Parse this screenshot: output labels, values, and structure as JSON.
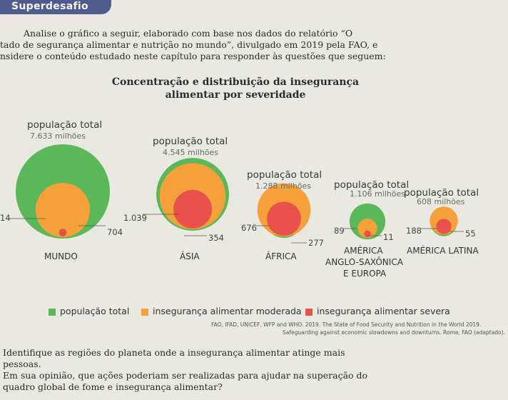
{
  "header": {
    "title": "Superdesafio"
  },
  "intro": [
    "Analise o gráfico a seguir, elaborado com base nos dados do relatório “O",
    "tado de segurança alimentar e nutrição no mundo”, divulgado em 2019 pela FAO, e",
    "nsidere o conteúdo estudado neste capítulo para responder às questões que seguem:"
  ],
  "chart_data": {
    "type": "bubble",
    "title_lines": [
      "Concentração e distribuição da insegurança",
      "alimentar por severidade"
    ],
    "population_label": "população total",
    "regions": [
      {
        "region": "MUNDO",
        "total_text": "7.633 milhões",
        "total": 7633,
        "moderate": 704,
        "severe": 14,
        "moderate_label": "704",
        "severe_label": "14"
      },
      {
        "region": "ÁSIA",
        "total_text": "4.545 milhões",
        "total": 4545,
        "moderate": 1039,
        "severe": 354,
        "moderate_label": "1.039",
        "severe_label": "354"
      },
      {
        "region": "ÁFRICA",
        "total_text": "1.288 milhões",
        "total": 1288,
        "moderate": 676,
        "severe": 277,
        "moderate_label": "676",
        "severe_label": "277"
      },
      {
        "region": "AMÉRICA ANGLO-SAXÔNICA E EUROPA",
        "region_lines": [
          "AMÉRICA",
          "ANGLO-SAXÔNICA",
          "E EUROPA"
        ],
        "total_text": "1.106 milhões",
        "total": 1106,
        "moderate": 89,
        "severe": 11,
        "moderate_label": "89",
        "severe_label": "11"
      },
      {
        "region": "AMÉRICA LATINA",
        "total_text": "608 milhões",
        "total": 608,
        "moderate": 188,
        "severe": 55,
        "moderate_label": "188",
        "severe_label": "55"
      }
    ],
    "legend": [
      {
        "name": "população total",
        "color": "#5bb85a"
      },
      {
        "name": "insegurança alimentar moderada",
        "color": "#f5a13b"
      },
      {
        "name": "insegurança alimentar severa",
        "color": "#e8524b"
      }
    ]
  },
  "source": [
    "FAO, IFAD, UNICEF, WFP and WHO. 2019. The State of Food Security and Nutrition in the World 2019.",
    "Safeguarding against economic slowdowns and downturns. Rome, FAO (adaptado)."
  ],
  "questions": [
    "Identifique as regiões do planeta onde a insegurança alimentar atinge mais",
    "pessoas.",
    "Em sua opinião, que ações poderiam ser realizadas para ajudar na superação do",
    "quadro global de fome e insegurança alimentar?"
  ]
}
